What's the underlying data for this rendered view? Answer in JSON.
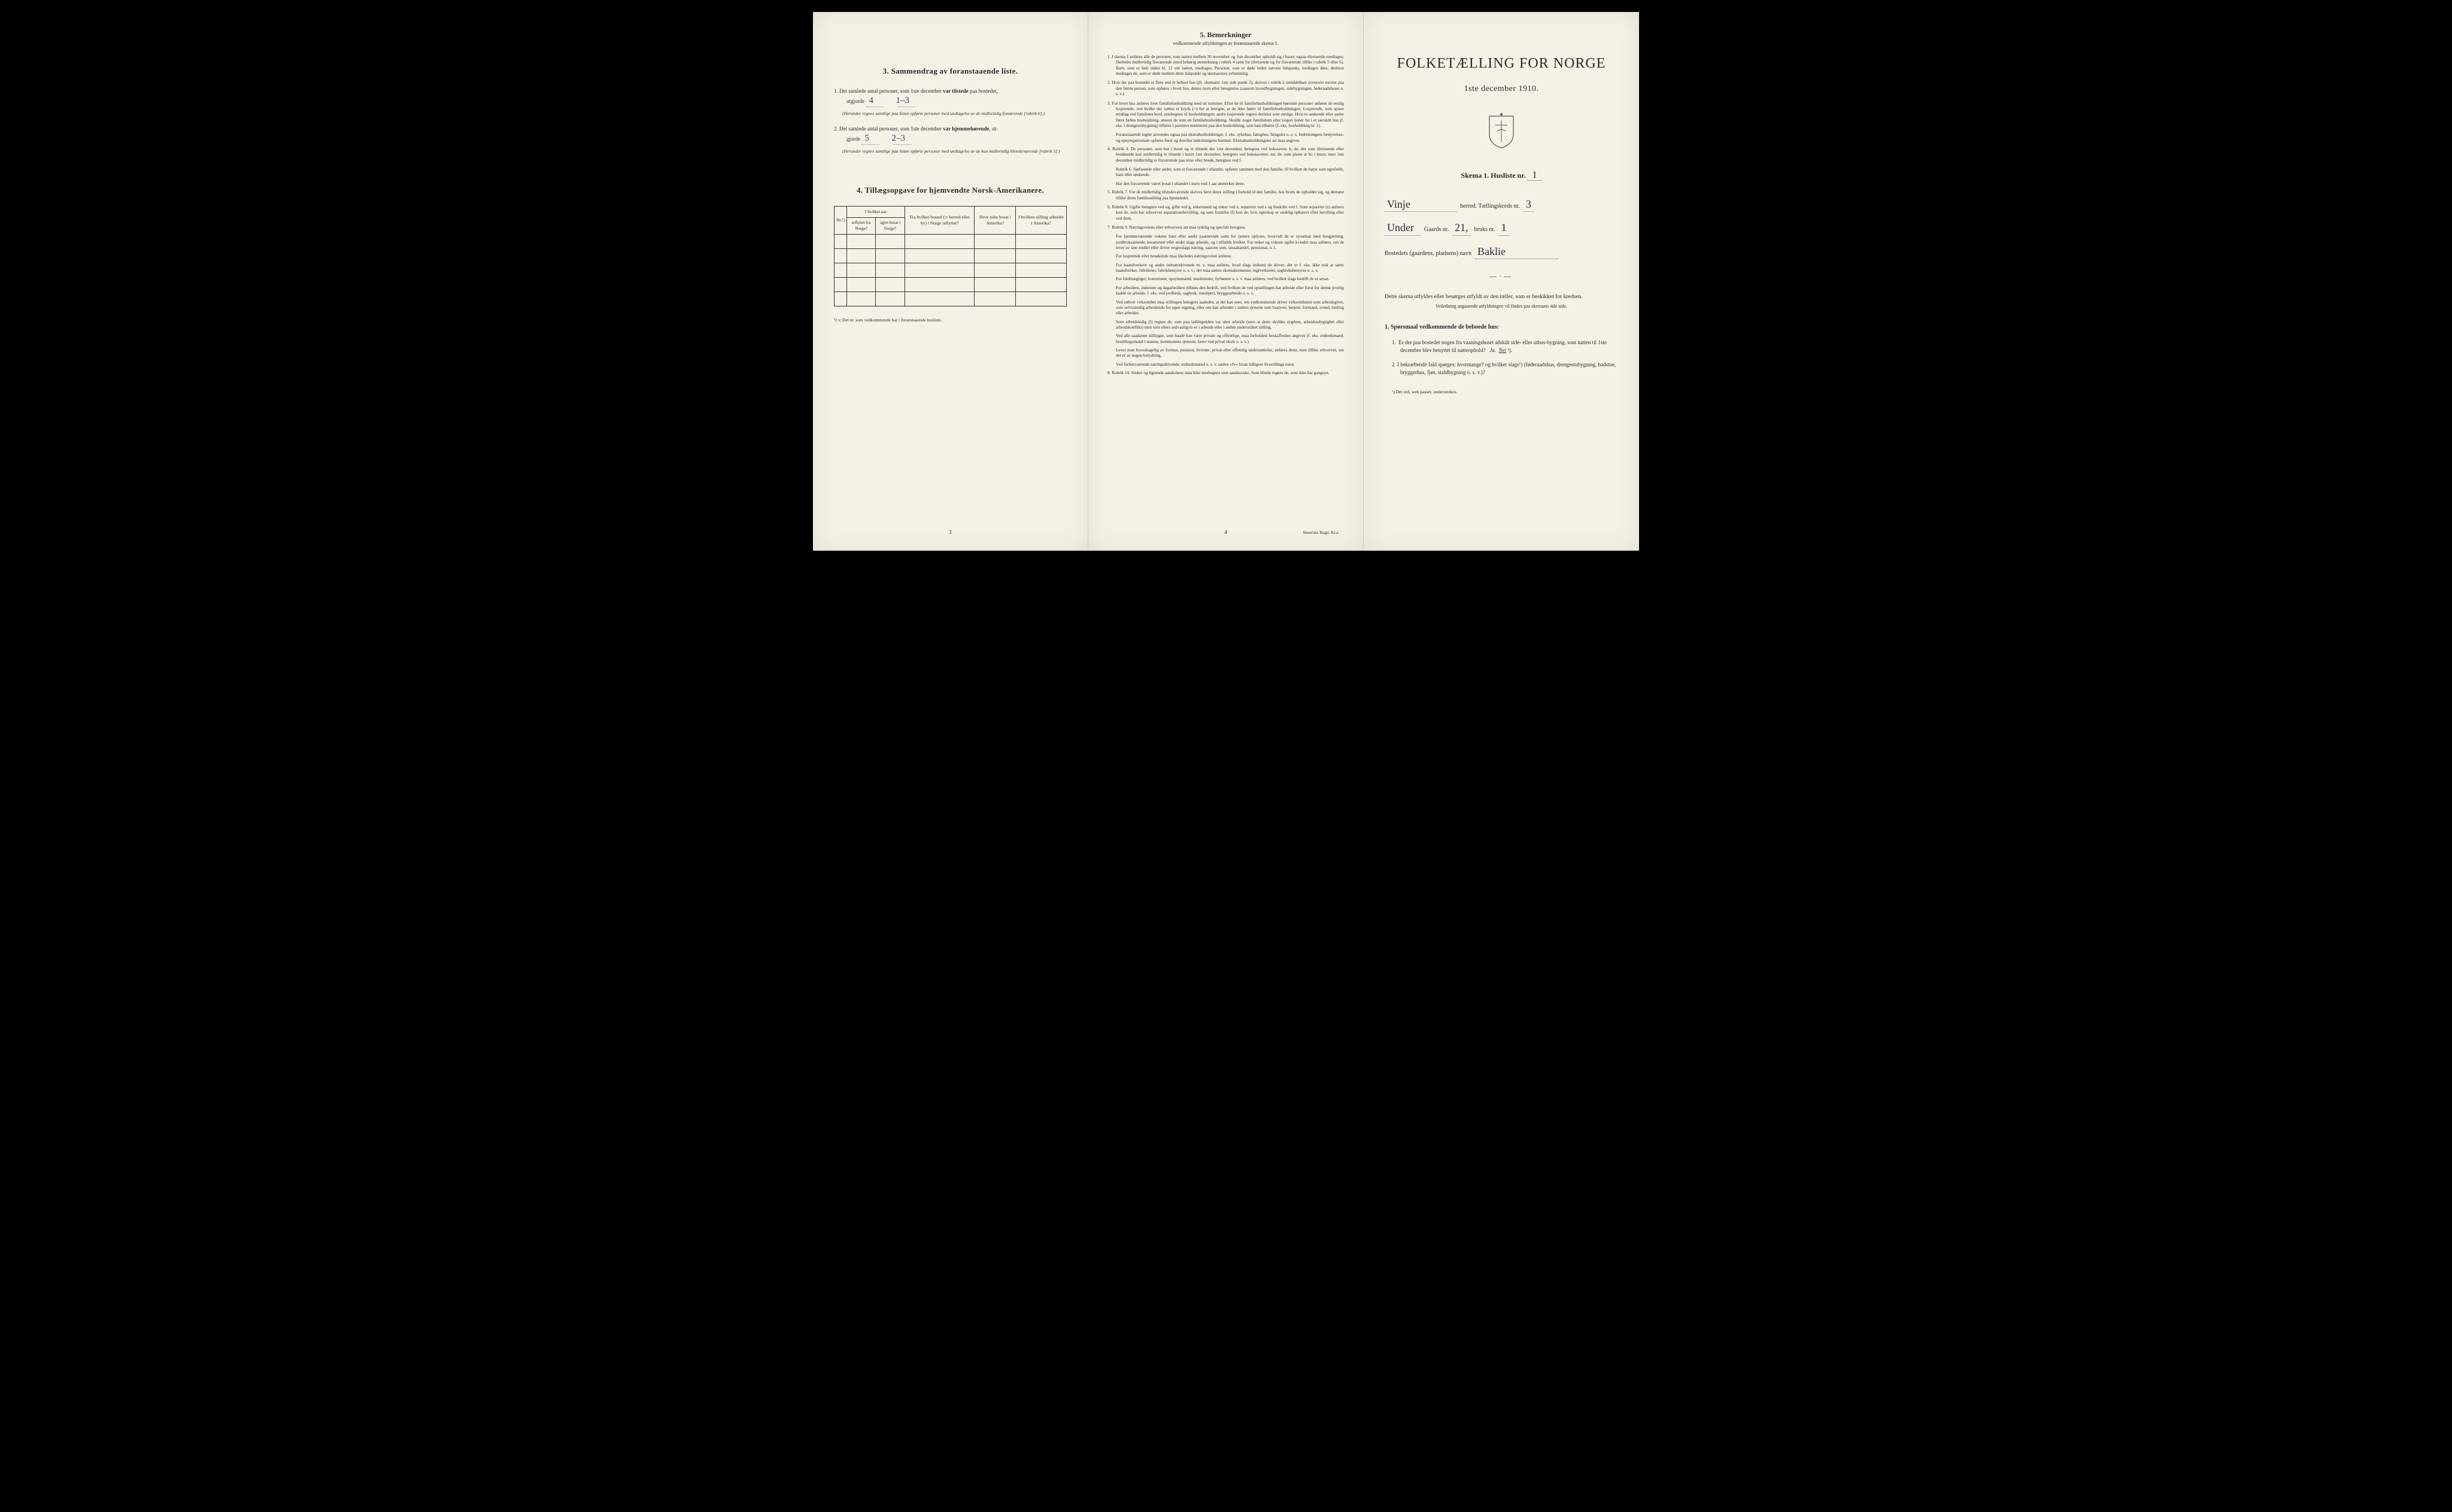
{
  "colors": {
    "paper": "#f5f1e6",
    "ink": "#2a2a2a",
    "handwriting": "#3a3a5a",
    "background": "#000000"
  },
  "left": {
    "section3_title": "3.   Sammendrag av foranstaaende liste.",
    "item1_pre": "1.  Det samlede antal personer, som 1ste december ",
    "item1_bold": "var tilstede",
    "item1_post": " paa bostedet,",
    "item1_line2": "utgjorde ",
    "item1_hw1": "4",
    "item1_hw2": "1–3",
    "item1_note": "(Herunder regnes samtlige paa listen opførte personer med undtagelse av de midlertidig fraværende [rubrik 6].)",
    "item2_pre": "2.  Det samlede antal personer, som 1ste december ",
    "item2_bold": "var hjemmehørende",
    "item2_post": ", ut-",
    "item2_line2": "gjorde ",
    "item2_hw1": "5",
    "item2_hw2": "2–3",
    "item2_note": "(Herunder regnes samtlige paa listen opførte personer med undtagelse av de kun midlertidig tilstedeværende [rubrik 5].)",
    "section4_title": "4.   Tillægsopgave for hjemvendte Norsk-Amerikanere.",
    "table": {
      "cols": [
        "Nr.¹)",
        "I hvilket aar",
        "Fra hvilket bosted (ɔ: herred eller by) i Norge utflyttet?",
        "Hvor sidst bosat i Amerika?",
        "I hvilken stilling arbeidet i Amerika?"
      ],
      "sub_a": "utflyttet fra Norge?",
      "sub_b": "igjen bosat i Norge?",
      "rows": 5
    },
    "footnote": "¹) ɔ: Det nr. som vedkommende har i foranstaaende husliste.",
    "page_num": "3"
  },
  "center": {
    "title": "5.   Bemerkninger",
    "subtitle": "vedkommende utfyldningen av foranstaaende skema 1.",
    "items": [
      "1.  I skema 1 anføres alle de personer, som natten mellem 30 november og 1ste december opholdt sig i huset; ogsaa tilreisende medtages; likeledes midlertidig fraværende (med behørig anmerkning i rubrik 4 samt for tilreisende og for fraværende tillike i rubrik 5 eller 6). Barn, som er født inden kl. 12 om natten, medtages. Personer, som er døde inden nævnte tidspunkt, medtages ikke; derimot medtages de, som er døde mellem dette tidspunkt og skemaernes avhentning.",
      "2.  Hvis der paa bostedet er flere end ét beboet hus (jfr. skemaets 1ste side punkt 2), skrives i rubrik 2 umiddelbart ovenover navnet paa den første person, som opføres i hvert hus, dettes navn eller betegnelse (saasom hovedbygningen, sidebygningen, føderaadshuset o. s. v.).",
      "3.  For hvert hus anføres hver familiehusholdning med sit nummer. Efter de til familiehusholdningen hørende personer anføres de enslig losjerende, ved hvilke der sættes et kryds (×) for at betegne, at de ikke hører til familiehusholdningen. Losjerende, som spiser middag ved familiens bord, medregnes til husholdningen; andre losjerende regnes derimot som enslige. Hvis to søskende eller andre fører fælles husholdning, ansees de som en familiehusholdning. Skulde noget familielem eller nogen tjener bo i et særskilt hus (f. eks. i drengestubygning) tilføies i parentes nummeret paa den husholdning, som han tilhører (f. eks. husholdning nr. 1).",
      "4.  Rubrik 4. De personer, som bor i huset og er tilstede der 1ste december, betegnes ved bokstaven: b; de, der som tilreisende eller besøkende kun midlertidig er tilstede i huset 1ste december, betegnes ved bokstaverne: mt; de, som pleier at bo i huset, men 1ste december midlertidig er fraværende paa reise eller besøk, betegnes ved f.",
      "5.  Rubrik 7. For de midlertidig tilstedeværende skrives først deres stilling i forhold til den familie, hos hvem de opholder sig, og dernæst tillike deres familiestilling paa hjemstedet.",
      "6.  Rubrik 8. Ugifte betegnes ved ug, gifte ved g, enkemænd og enker ved e, separerte ved s og fraskilte ved f. Som separerte (s) anføres kun de, som har erhvervet separationsbevilling, og som fraskilte (f) kun de, hvis egteskap er endelig ophævet efter bevilling eller ved dom.",
      "7.  Rubrik 9. Næringsveiens eller erhvervets art maa tydelig og specielt betegnes.",
      "8.  Rubrik 14. Sinker og lignende aandssløve maa ikke medregnes som aandssvake. Som blinde regnes de, som ikke har gangsyn."
    ],
    "item3_extra": "Foranstaaende regler anvendes ogsaa paa ekstrahusholdninger, f. eks. sykehus, fattighus, fængsler o. s. v. Indretningens bestyrelses- og opsynspersonale opføres først og derefter indretningens lemmer. Ekstrahusholdningens art maa angives.",
    "item4_extra1": "Rubrik 6. Sjøfarende eller andre, som er fraværende i utlandet, opføres sammen med den familie, til hvilken de hører som egtefælle, barn eller søskende.",
    "item4_extra2": "Har den fraværende været bosat i utlandet i mere end 1 aar anmerkes dette.",
    "item7_paras": [
      "For hjemmeværende voksne barn eller andre paarørende samt for tjenere oplyses, hvorvidt de er sysselsat med husgjerning, jordbruksarbeide, kreaturstel eller andet slags arbeide, og i tilfælde hvilket. For enker og voksne ugifte kvinder maa anføres, om de lever av sine midler eller driver nogenslags næring, saasom som, smaahandel, pensionat, o. l.",
      "For losjerende eller besøkende maa likeledes næringsveien anføres.",
      "For haandverkere og andre industridrivende m. v. maa anføres, hvad slags industri de driver; det er f. eks. ikke nok at sætte haandverker, fabrikeier, fabrikbestyrer o. s. v.; der maa sættes skomakermester, teglverkseier, sagbruksbestyrer o. s. v.",
      "For fuldmægtiger, kontorister, opsynsmænd, maskinister, fyrbøtere o. s. v. maa anføres, ved hvilket slags bedrift de er ansat.",
      "For arbeidere, inderster og dagarbeidere tilføies den bedrift, ved hvilken de ved optællingen har arbeide eller forut for denne jevnlig hadde sit arbeide, f. eks. ved jordbruk, sagbruk, træsliperi, bryggearbeide o. s. v.",
      "Ved enhver virksomhet maa stillingen betegnes saaledes, at det kan sees, om vedkommende driver virksomheten som arbeidsgiver, som selvstændig arbeidende for egen regning, eller om han arbeider i andres tjeneste som bestyrer, betjent, formand, svend, lærling eller arbeider.",
      "Som arbeidsledig (l) regnes de, som paa tællingstiden var uten arbeide (uten at dette skyldes sygdom, arbeidsudygtighet eller arbeidskonflikt) men som ellers sedvanligvis er i arbeide eller i anden underordnet stilling.",
      "Ved alle saadanne stillinger, som baade kan være private og offentlige, maa forholdets beskaffenhet angives (f. eks. embedsmand, bestillingsmand i statens, kommunens tjeneste, lærer ved privat skole o. s. v.).",
      "Lever man hovedsagelig av formue, pension, livrente, privat eller offentlig understøttelse, anføres dette, men tillike erhvervet, om det er av nogen betydning.",
      "Ved forhenværende næringsdrivende, embedsmænd o. s. v. sættes «fv» foran tidligere livsstillings navn."
    ],
    "page_num": "4",
    "printer": "Steen'ske Bogtr.  Kr.a."
  },
  "right": {
    "main_title": "FOLKETÆLLING FOR NORGE",
    "date": "1ste december 1910.",
    "skema_label": "Skema 1.   Husliste nr.",
    "skema_hw": "1",
    "herred_hw": "Vinje",
    "herred_label": "herred.   Tællingskreds nr.",
    "kreds_hw": "3",
    "gaard_prefix_hw": "Under",
    "gaard_label": "Gaards nr.",
    "gaard_hw": "21,",
    "bruk_label": "bruks nr.",
    "bruk_hw": "1",
    "bosted_label": "Bostedets (gaardens, pladsens) navn",
    "bosted_hw": "Baklie",
    "instr1": "Dette skema utfyldes eller besørges utfyldt av den tæller, som er beskikket for kredsen.",
    "instr2": "Veiledning angaaende utfyldningen vil findes paa skemaets 4de side.",
    "sporsmaal_title": "1.  Spørsmaal vedkommende de beboede hus:",
    "q1": "1.  Er der paa bostedet nogen fra vaaningshuset adskilt side- eller uthus-bygning, som natten til 1ste december blev benyttet til natteophold?   Ja.  Nei ¹).",
    "q2": "2.  I bekræftende fald spørges: hvormange?            og hvilket slags¹) (føderaadshus, drengestubygning, badstue, bryggerhus, fjøs, staldbygning o. s. v.)?",
    "footnote": "¹) Det ord, som passer, understrekes."
  }
}
